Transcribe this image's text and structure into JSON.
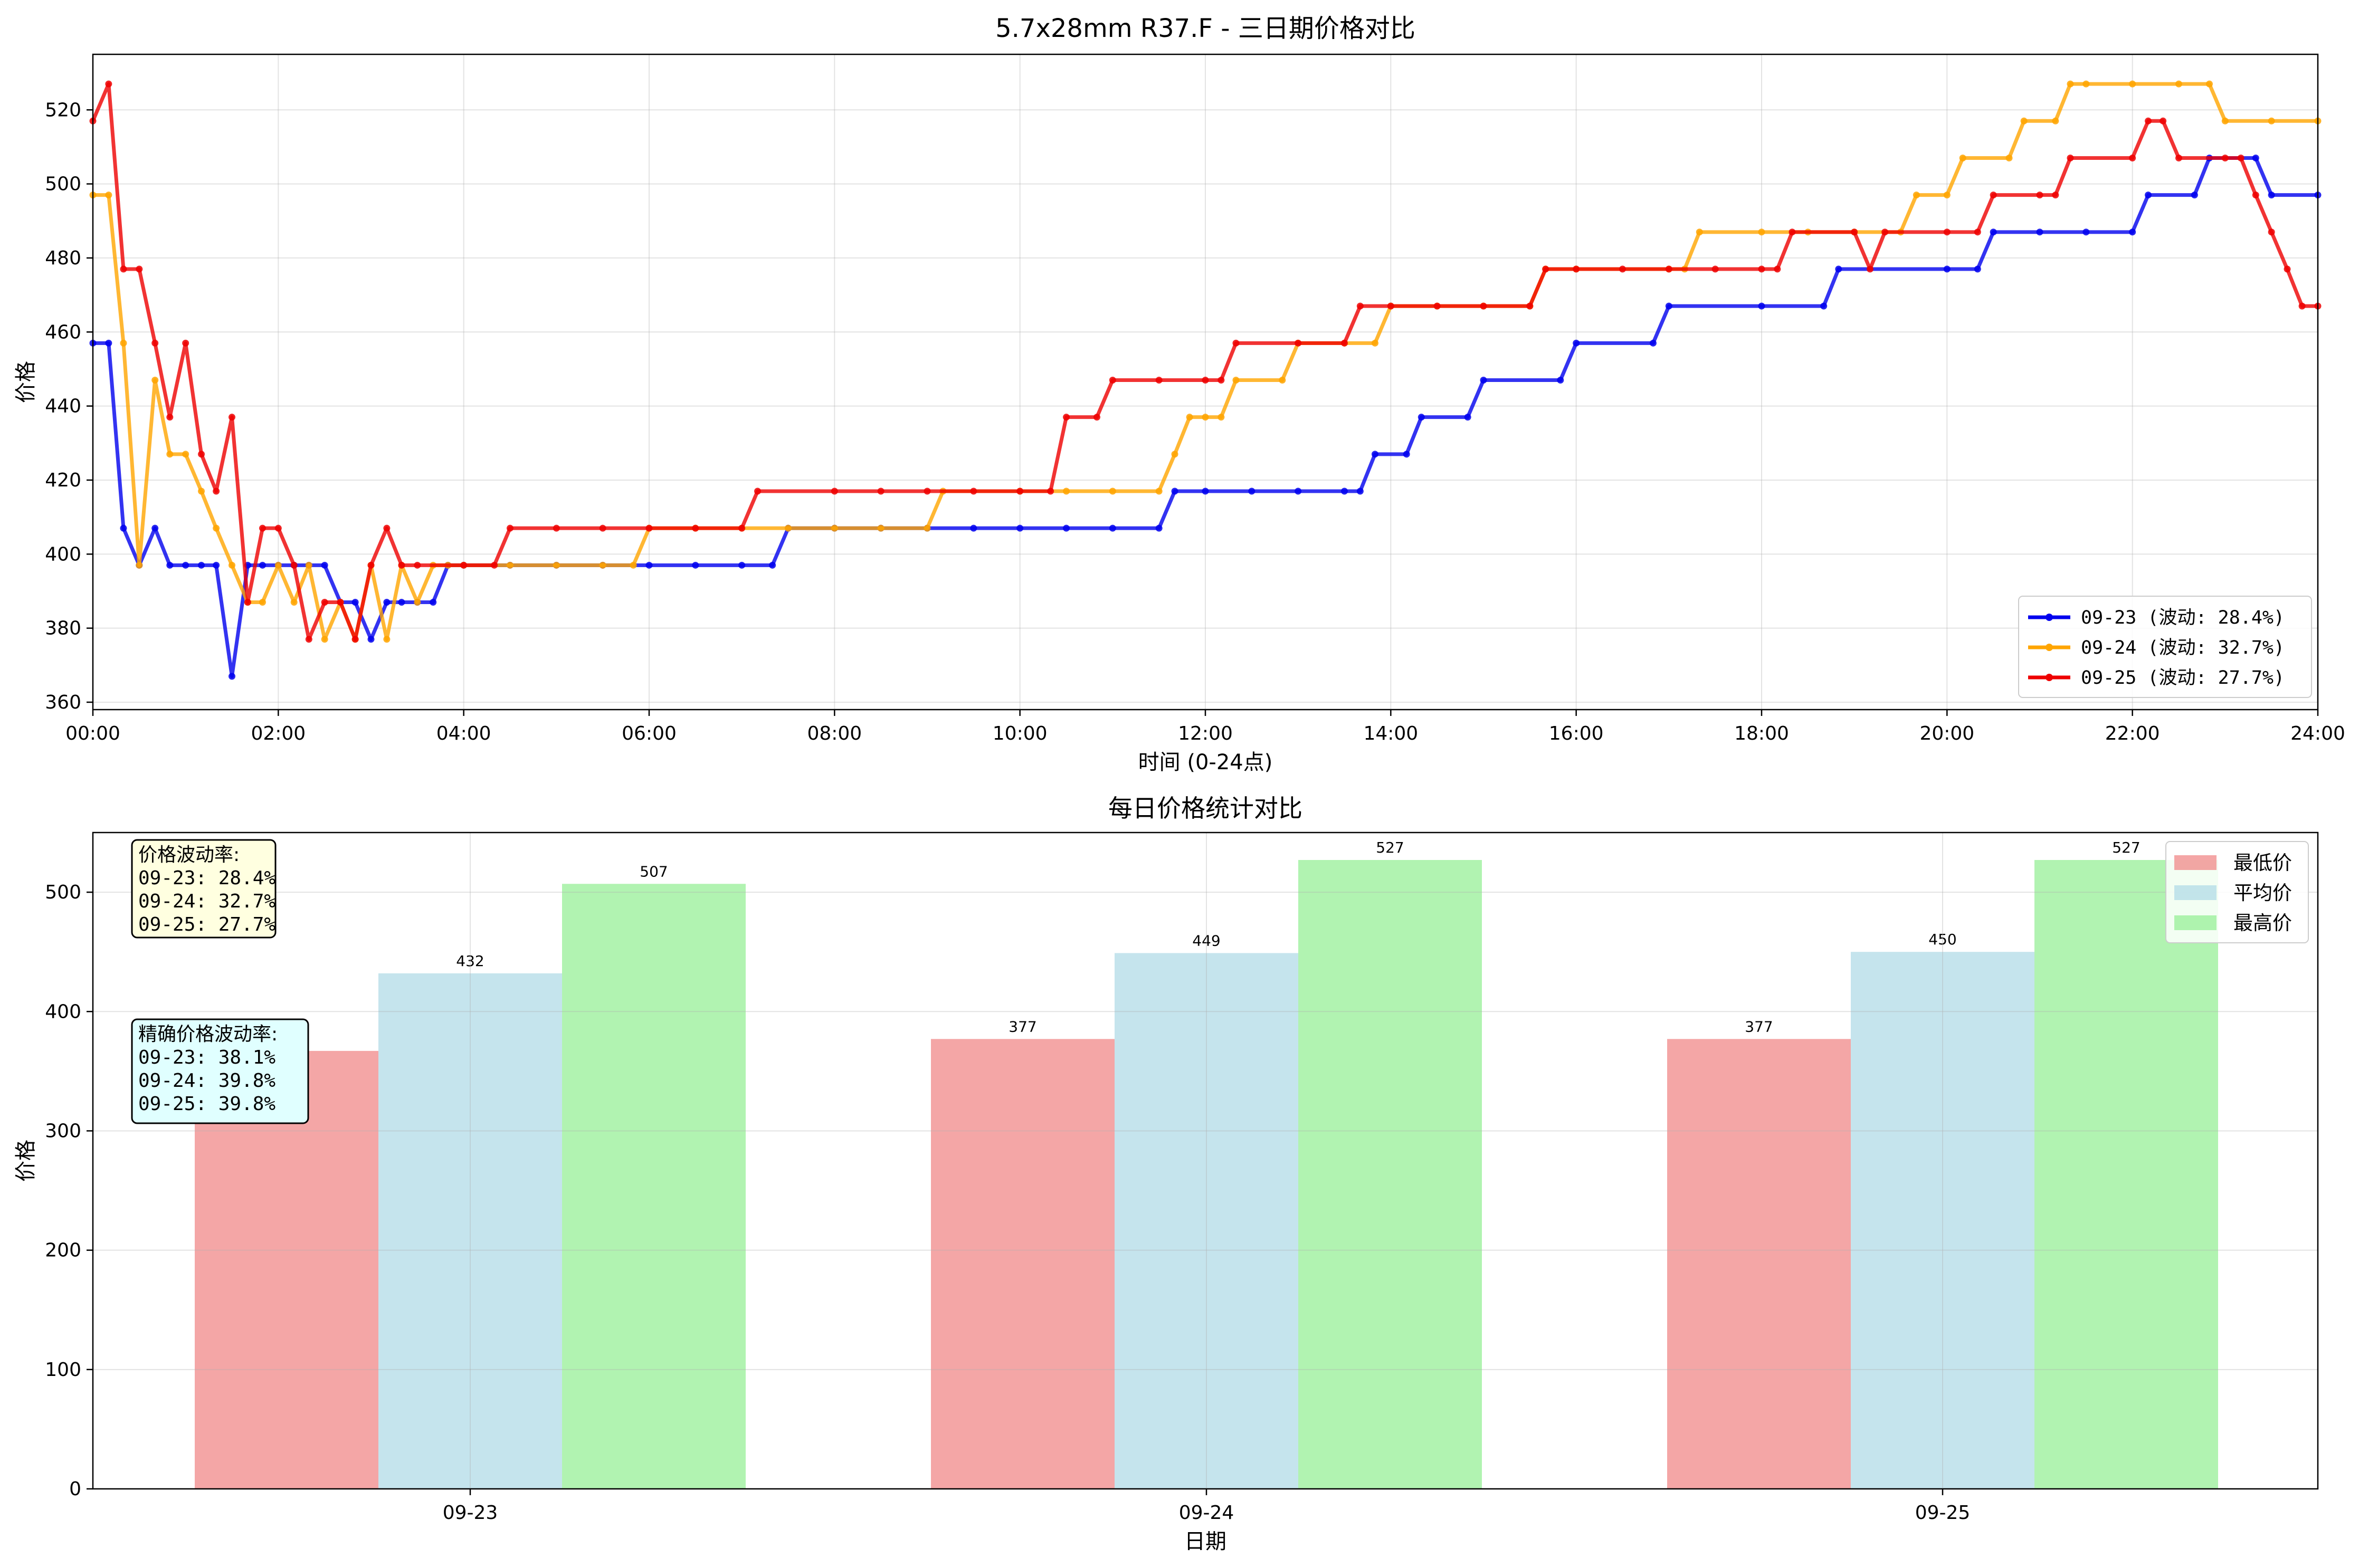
{
  "figure": {
    "background": "#ffffff"
  },
  "colors": {
    "d0923": "#0000ee",
    "d0924": "#ffa500",
    "d0925": "#ee0000",
    "min_bar": "#f08080",
    "avg_bar": "#add8e6",
    "max_bar": "#90ee90",
    "box1_bg": "#ffffe0",
    "box2_bg": "#e0ffff"
  },
  "chart_data": [
    {
      "type": "line",
      "title": "5.7x28mm R37.F - 三日期价格对比",
      "xlabel": "时间 (0-24点)",
      "ylabel": "价格",
      "xlim": [
        0,
        24
      ],
      "ylim": [
        358,
        535
      ],
      "grid": true,
      "x_tick_values": [
        0,
        2,
        4,
        6,
        8,
        10,
        12,
        14,
        16,
        18,
        20,
        22,
        24
      ],
      "x_tick_labels": [
        "00:00",
        "02:00",
        "04:00",
        "06:00",
        "08:00",
        "10:00",
        "12:00",
        "14:00",
        "16:00",
        "18:00",
        "20:00",
        "22:00",
        "24:00"
      ],
      "y_ticks": [
        360,
        380,
        400,
        420,
        440,
        460,
        480,
        500,
        520
      ],
      "legend_position": "lower-right",
      "legend_entries": [
        "09-23 (波动: 28.4%)",
        "09-24 (波动: 32.7%)",
        "09-25 (波动: 27.7%)"
      ],
      "series": [
        {
          "name": "09-23 (波动: 28.4%)",
          "color_key": "d0923",
          "points": [
            [
              0,
              457
            ],
            [
              0.17,
              457
            ],
            [
              0.33,
              407
            ],
            [
              0.5,
              397
            ],
            [
              0.67,
              407
            ],
            [
              0.83,
              397
            ],
            [
              1,
              397
            ],
            [
              1.17,
              397
            ],
            [
              1.33,
              397
            ],
            [
              1.5,
              367
            ],
            [
              1.67,
              397
            ],
            [
              1.83,
              397
            ],
            [
              2,
              397
            ],
            [
              2.17,
              397
            ],
            [
              2.33,
              397
            ],
            [
              2.5,
              397
            ],
            [
              2.67,
              387
            ],
            [
              2.83,
              387
            ],
            [
              3,
              377
            ],
            [
              3.17,
              387
            ],
            [
              3.33,
              387
            ],
            [
              3.5,
              387
            ],
            [
              3.67,
              387
            ],
            [
              3.83,
              397
            ],
            [
              4,
              397
            ],
            [
              4.5,
              397
            ],
            [
              5,
              397
            ],
            [
              5.5,
              397
            ],
            [
              6,
              397
            ],
            [
              6.5,
              397
            ],
            [
              7,
              397
            ],
            [
              7.33,
              397
            ],
            [
              7.5,
              407
            ],
            [
              8,
              407
            ],
            [
              8.5,
              407
            ],
            [
              9,
              407
            ],
            [
              9.5,
              407
            ],
            [
              10,
              407
            ],
            [
              10.5,
              407
            ],
            [
              11,
              407
            ],
            [
              11.5,
              407
            ],
            [
              11.67,
              417
            ],
            [
              12,
              417
            ],
            [
              12.5,
              417
            ],
            [
              13,
              417
            ],
            [
              13.5,
              417
            ],
            [
              13.67,
              417
            ],
            [
              13.83,
              427
            ],
            [
              14.17,
              427
            ],
            [
              14.33,
              437
            ],
            [
              14.83,
              437
            ],
            [
              15,
              447
            ],
            [
              15.83,
              447
            ],
            [
              16,
              457
            ],
            [
              16.83,
              457
            ],
            [
              17,
              467
            ],
            [
              18,
              467
            ],
            [
              18.67,
              467
            ],
            [
              18.83,
              477
            ],
            [
              20,
              477
            ],
            [
              20.33,
              477
            ],
            [
              20.5,
              487
            ],
            [
              21,
              487
            ],
            [
              21.5,
              487
            ],
            [
              22,
              487
            ],
            [
              22.17,
              497
            ],
            [
              22.67,
              497
            ],
            [
              22.83,
              507
            ],
            [
              23.33,
              507
            ],
            [
              23.5,
              497
            ],
            [
              24,
              497
            ]
          ]
        },
        {
          "name": "09-24 (波动: 32.7%)",
          "color_key": "d0924",
          "points": [
            [
              0,
              497
            ],
            [
              0.17,
              497
            ],
            [
              0.33,
              457
            ],
            [
              0.5,
              397
            ],
            [
              0.67,
              447
            ],
            [
              0.83,
              427
            ],
            [
              1,
              427
            ],
            [
              1.17,
              417
            ],
            [
              1.33,
              407
            ],
            [
              1.5,
              397
            ],
            [
              1.67,
              387
            ],
            [
              1.83,
              387
            ],
            [
              2,
              397
            ],
            [
              2.17,
              387
            ],
            [
              2.33,
              397
            ],
            [
              2.5,
              377
            ],
            [
              2.67,
              387
            ],
            [
              2.83,
              377
            ],
            [
              3,
              397
            ],
            [
              3.17,
              377
            ],
            [
              3.33,
              397
            ],
            [
              3.5,
              387
            ],
            [
              3.67,
              397
            ],
            [
              3.83,
              397
            ],
            [
              4,
              397
            ],
            [
              4.5,
              397
            ],
            [
              5,
              397
            ],
            [
              5.5,
              397
            ],
            [
              5.83,
              397
            ],
            [
              6,
              407
            ],
            [
              6.5,
              407
            ],
            [
              7,
              407
            ],
            [
              7.5,
              407
            ],
            [
              8,
              407
            ],
            [
              8.5,
              407
            ],
            [
              9,
              407
            ],
            [
              9.17,
              417
            ],
            [
              10,
              417
            ],
            [
              10.5,
              417
            ],
            [
              11,
              417
            ],
            [
              11.5,
              417
            ],
            [
              11.67,
              427
            ],
            [
              11.83,
              437
            ],
            [
              12,
              437
            ],
            [
              12.17,
              437
            ],
            [
              12.33,
              447
            ],
            [
              12.83,
              447
            ],
            [
              13,
              457
            ],
            [
              13.5,
              457
            ],
            [
              13.83,
              457
            ],
            [
              14,
              467
            ],
            [
              14.5,
              467
            ],
            [
              15,
              467
            ],
            [
              15.5,
              467
            ],
            [
              15.67,
              477
            ],
            [
              16,
              477
            ],
            [
              17,
              477
            ],
            [
              17.17,
              477
            ],
            [
              17.33,
              487
            ],
            [
              18,
              487
            ],
            [
              18.5,
              487
            ],
            [
              19,
              487
            ],
            [
              19.5,
              487
            ],
            [
              19.67,
              497
            ],
            [
              20,
              497
            ],
            [
              20.17,
              507
            ],
            [
              20.67,
              507
            ],
            [
              20.83,
              517
            ],
            [
              21.17,
              517
            ],
            [
              21.33,
              527
            ],
            [
              21.5,
              527
            ],
            [
              22,
              527
            ],
            [
              22.5,
              527
            ],
            [
              22.83,
              527
            ],
            [
              23,
              517
            ],
            [
              23.5,
              517
            ],
            [
              24,
              517
            ]
          ]
        },
        {
          "name": "09-25 (波动: 27.7%)",
          "color_key": "d0925",
          "points": [
            [
              0,
              517
            ],
            [
              0.17,
              527
            ],
            [
              0.33,
              477
            ],
            [
              0.5,
              477
            ],
            [
              0.67,
              457
            ],
            [
              0.83,
              437
            ],
            [
              1,
              457
            ],
            [
              1.17,
              427
            ],
            [
              1.33,
              417
            ],
            [
              1.5,
              437
            ],
            [
              1.67,
              387
            ],
            [
              1.83,
              407
            ],
            [
              2,
              407
            ],
            [
              2.17,
              397
            ],
            [
              2.33,
              377
            ],
            [
              2.5,
              387
            ],
            [
              2.67,
              387
            ],
            [
              2.83,
              377
            ],
            [
              3,
              397
            ],
            [
              3.17,
              407
            ],
            [
              3.33,
              397
            ],
            [
              3.5,
              397
            ],
            [
              4,
              397
            ],
            [
              4.33,
              397
            ],
            [
              4.5,
              407
            ],
            [
              5,
              407
            ],
            [
              5.5,
              407
            ],
            [
              6,
              407
            ],
            [
              6.5,
              407
            ],
            [
              7,
              407
            ],
            [
              7.17,
              417
            ],
            [
              8,
              417
            ],
            [
              8.5,
              417
            ],
            [
              9,
              417
            ],
            [
              9.5,
              417
            ],
            [
              10,
              417
            ],
            [
              10.33,
              417
            ],
            [
              10.5,
              437
            ],
            [
              10.83,
              437
            ],
            [
              11,
              447
            ],
            [
              11.5,
              447
            ],
            [
              12,
              447
            ],
            [
              12.17,
              447
            ],
            [
              12.33,
              457
            ],
            [
              13,
              457
            ],
            [
              13.5,
              457
            ],
            [
              13.67,
              467
            ],
            [
              14,
              467
            ],
            [
              14.5,
              467
            ],
            [
              15,
              467
            ],
            [
              15.5,
              467
            ],
            [
              15.67,
              477
            ],
            [
              16,
              477
            ],
            [
              16.5,
              477
            ],
            [
              17,
              477
            ],
            [
              17.5,
              477
            ],
            [
              18,
              477
            ],
            [
              18.17,
              477
            ],
            [
              18.33,
              487
            ],
            [
              19,
              487
            ],
            [
              19.17,
              477
            ],
            [
              19.33,
              487
            ],
            [
              20,
              487
            ],
            [
              20.33,
              487
            ],
            [
              20.5,
              497
            ],
            [
              21,
              497
            ],
            [
              21.17,
              497
            ],
            [
              21.33,
              507
            ],
            [
              22,
              507
            ],
            [
              22.17,
              517
            ],
            [
              22.33,
              517
            ],
            [
              22.5,
              507
            ],
            [
              23,
              507
            ],
            [
              23.17,
              507
            ],
            [
              23.33,
              497
            ],
            [
              23.5,
              487
            ],
            [
              23.67,
              477
            ],
            [
              23.83,
              467
            ],
            [
              24,
              467
            ]
          ]
        }
      ]
    },
    {
      "type": "bar",
      "title": "每日价格统计对比",
      "xlabel": "日期",
      "ylabel": "价格",
      "ylim": [
        0,
        550
      ],
      "grid": true,
      "y_ticks": [
        0,
        100,
        200,
        300,
        400,
        500
      ],
      "categories": [
        "09-23",
        "09-24",
        "09-25"
      ],
      "legend_position": "top-right",
      "series": [
        {
          "name": "最低价",
          "color_key": "min_bar",
          "values": [
            367,
            377,
            377
          ],
          "labels": [
            "",
            "377",
            "377"
          ]
        },
        {
          "name": "平均价",
          "color_key": "avg_bar",
          "values": [
            432,
            449,
            450
          ],
          "labels": [
            "432",
            "449",
            "450"
          ]
        },
        {
          "name": "最高价",
          "color_key": "max_bar",
          "values": [
            507,
            527,
            527
          ],
          "labels": [
            "507",
            "527",
            "527"
          ]
        }
      ],
      "annotations": [
        {
          "key": "box1",
          "lines": [
            "价格波动率:",
            "09-23: 28.4%",
            "09-24: 32.7%",
            "09-25: 27.7%"
          ]
        },
        {
          "key": "box2",
          "lines": [
            "精确价格波动率:",
            "09-23: 38.1%",
            "09-24: 39.8%",
            "09-25: 39.8%"
          ]
        }
      ]
    }
  ]
}
